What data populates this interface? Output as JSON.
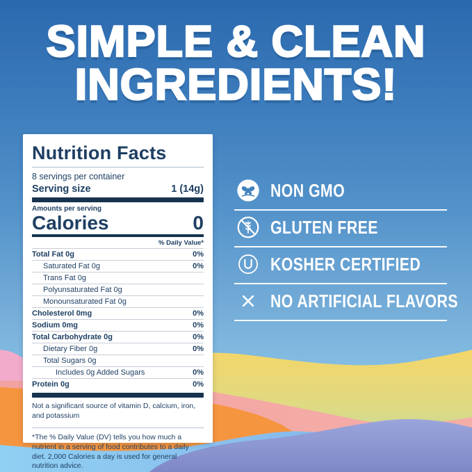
{
  "headline": {
    "line1": "SIMPLE & CLEAN",
    "line2": "INGREDIENTS!"
  },
  "nutrition_label": {
    "title": "Nutrition Facts",
    "servings_per_container": "8 servings per container",
    "serving_size_label": "Serving size",
    "serving_size_value": "1 (14g)",
    "amounts_per_serving": "Amounts per serving",
    "calories_label": "Calories",
    "calories_value": "0",
    "daily_value_header": "% Daily Value*",
    "rows": [
      {
        "label": "Total Fat 0g",
        "value": "0%",
        "bold": true,
        "indent": 0
      },
      {
        "label": "Saturated Fat 0g",
        "value": "0%",
        "bold": false,
        "indent": 1
      },
      {
        "label": "Trans Fat 0g",
        "value": "",
        "bold": false,
        "indent": 1
      },
      {
        "label": "Polyunsaturated Fat 0g",
        "value": "",
        "bold": false,
        "indent": 1
      },
      {
        "label": "Monounsaturated Fat 0g",
        "value": "",
        "bold": false,
        "indent": 1
      },
      {
        "label": "Cholesterol 0mg",
        "value": "0%",
        "bold": true,
        "indent": 0
      },
      {
        "label": "Sodium 0mg",
        "value": "0%",
        "bold": true,
        "indent": 0
      },
      {
        "label": "Total Carbohydrate 0g",
        "value": "0%",
        "bold": true,
        "indent": 0
      },
      {
        "label": "Dietary Fiber 0g",
        "value": "0%",
        "bold": false,
        "indent": 1
      },
      {
        "label": "Total Sugars 0g",
        "value": "",
        "bold": false,
        "indent": 1
      },
      {
        "label": "Includes 0g Added Sugars",
        "value": "0%",
        "bold": false,
        "indent": 2
      },
      {
        "label": "Protein 0g",
        "value": "0%",
        "bold": true,
        "indent": 0
      }
    ],
    "footnote1": "Not a significant source of vitamin D, calcium, iron, and potassium",
    "footnote2": "*The % Daily Value (DV) tells you how much a nutrient in a serving of food contributes to a daily diet. 2,000 Calories a day is used for general nutrition advice."
  },
  "features": [
    {
      "label": "NON GMO",
      "icon": "non-gmo-butterfly-icon"
    },
    {
      "label": "GLUTEN FREE",
      "icon": "gluten-free-icon"
    },
    {
      "label": "KOSHER CERTIFIED",
      "icon": "kosher-circled-u-icon"
    },
    {
      "label": "NO ARTIFICIAL FLAVORS",
      "icon": "cross-x-icon"
    }
  ],
  "colors": {
    "background_top": "#2b69ae",
    "background_bottom": "#9fd2ef",
    "label_text_navy": "#1e3f63",
    "headline_white": "#ffffff",
    "wave_rose": "#f2abca",
    "wave_yellow": "#f4d669",
    "wave_green": "#a9d6b4",
    "wave_salmon": "#f4a6a4",
    "wave_orange": "#f6953f",
    "wave_lightblue": "#8ed0f2",
    "wave_periwinkle": "#8b95cf"
  }
}
